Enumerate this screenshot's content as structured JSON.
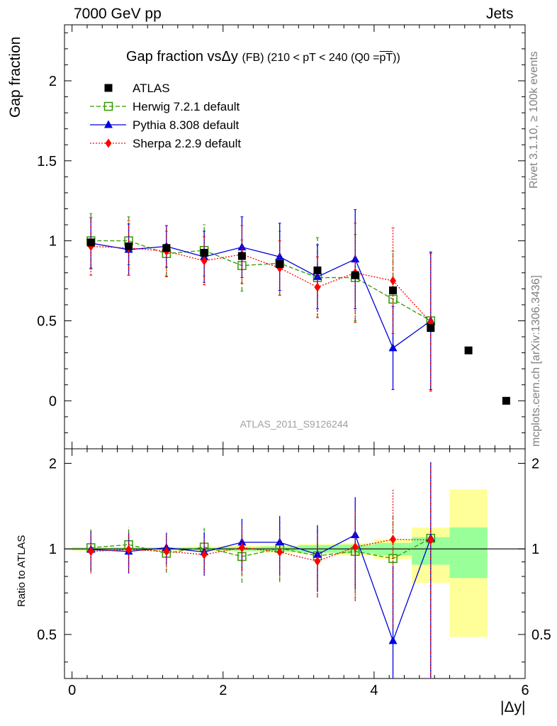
{
  "header": {
    "left": "7000 GeV pp",
    "right": "Jets"
  },
  "title": {
    "main": "Gap fraction vsΔy",
    "suffix": "(FB) (210 < pT < 240 (Q0 =",
    "pt": "pT",
    "close": "))"
  },
  "ylabel_top": "Gap fraction",
  "ylabel_bottom": "Ratio to ATLAS",
  "xlabel": "|Δy|",
  "watermark": "ATLAS_2011_S9126244",
  "side_top": "Rivet 3.1.10, ≥ 100k events",
  "side_bottom": "mcplots.cern.ch [arXiv:1306.3436]",
  "legend": [
    {
      "label": "ATLAS",
      "color": "#000000",
      "marker": "square-filled"
    },
    {
      "label": "Herwig 7.2.1 default",
      "color": "#339900",
      "marker": "square-open"
    },
    {
      "label": "Pythia 8.308 default",
      "color": "#0000dd",
      "marker": "triangle"
    },
    {
      "label": "Sherpa 2.2.9 default",
      "color": "#ff0000",
      "marker": "diamond"
    }
  ],
  "chart_data": {
    "type": "scatter",
    "xlim": [
      -0.1,
      6.0
    ],
    "ylim_main": [
      -0.3,
      2.35
    ],
    "ylim_ratio": [
      0.35,
      2.25
    ],
    "x_ticks": [
      "0",
      "2",
      "4",
      "6"
    ],
    "y_ticks_main": [
      "0",
      "0.5",
      "1",
      "1.5",
      "2"
    ],
    "y_ticks_ratio": [
      "0.5",
      "1",
      "2"
    ],
    "x": [
      0.25,
      0.75,
      1.25,
      1.75,
      2.25,
      2.75,
      3.25,
      3.75,
      4.25,
      4.75,
      5.25,
      5.75
    ],
    "atlas": [
      0.99,
      0.965,
      0.955,
      0.925,
      0.905,
      0.855,
      0.815,
      0.785,
      0.69,
      0.455,
      0.315,
      0.0
    ],
    "series": [
      {
        "name": "Herwig 7.2.1 default",
        "color": "#339900",
        "x": [
          0.25,
          0.75,
          1.25,
          1.75,
          2.25,
          2.75,
          3.25,
          3.75,
          4.25,
          4.75
        ],
        "y": [
          1.0,
          1.0,
          0.92,
          0.94,
          0.845,
          0.86,
          0.77,
          0.77,
          0.635,
          0.5
        ],
        "err": [
          0.17,
          0.15,
          0.14,
          0.16,
          0.16,
          0.2,
          0.25,
          0.27,
          0.3,
          0.43
        ],
        "ratio": [
          1.01,
          1.035,
          0.965,
          1.015,
          0.94,
          1.005,
          0.945,
          0.98,
          0.925,
          1.09
        ],
        "rerr": [
          0.18,
          0.16,
          0.14,
          0.17,
          0.18,
          0.24,
          0.27,
          0.32,
          0.4,
          0.93
        ]
      },
      {
        "name": "Pythia 8.308 default",
        "color": "#0000dd",
        "x": [
          0.25,
          0.75,
          1.25,
          1.75,
          2.25,
          2.75,
          3.25,
          3.75,
          4.25,
          4.75
        ],
        "y": [
          0.985,
          0.945,
          0.965,
          0.9,
          0.96,
          0.9,
          0.775,
          0.885,
          0.33,
          0.5
        ],
        "err": [
          0.16,
          0.16,
          0.13,
          0.16,
          0.19,
          0.21,
          0.2,
          0.31,
          0.26,
          0.43
        ],
        "ratio": [
          0.995,
          0.98,
          1.01,
          0.975,
          1.055,
          1.055,
          0.955,
          1.12,
          0.475,
          1.09
        ],
        "rerr": [
          0.16,
          0.16,
          0.13,
          0.17,
          0.22,
          0.25,
          0.25,
          0.4,
          0.4,
          0.93
        ]
      },
      {
        "name": "Sherpa 2.2.9 default",
        "color": "#ff0000",
        "x": [
          0.25,
          0.75,
          1.25,
          1.75,
          2.25,
          2.75,
          3.25,
          3.75,
          4.25,
          4.75
        ],
        "y": [
          0.965,
          0.955,
          0.935,
          0.875,
          0.915,
          0.83,
          0.71,
          0.8,
          0.75,
          0.49
        ],
        "err": [
          0.18,
          0.17,
          0.16,
          0.15,
          0.18,
          0.17,
          0.19,
          0.31,
          0.33,
          0.43
        ],
        "ratio": [
          0.98,
          0.995,
          0.98,
          0.955,
          1.01,
          0.975,
          0.905,
          1.015,
          1.08,
          1.075
        ],
        "rerr": [
          0.16,
          0.16,
          0.14,
          0.14,
          0.2,
          0.2,
          0.23,
          0.36,
          0.55,
          0.93
        ]
      }
    ],
    "ratio_bands": [
      {
        "x0": 0.0,
        "x1": 0.5,
        "yellow": [
          0.985,
          1.015
        ],
        "green": [
          0.99,
          1.01
        ]
      },
      {
        "x0": 0.5,
        "x1": 1.0,
        "yellow": [
          0.985,
          1.015
        ],
        "green": [
          0.99,
          1.01
        ]
      },
      {
        "x0": 1.0,
        "x1": 1.5,
        "yellow": [
          0.985,
          1.015
        ],
        "green": [
          0.99,
          1.01
        ]
      },
      {
        "x0": 1.5,
        "x1": 2.0,
        "yellow": [
          0.98,
          1.02
        ],
        "green": [
          0.99,
          1.01
        ]
      },
      {
        "x0": 2.0,
        "x1": 2.5,
        "yellow": [
          0.975,
          1.025
        ],
        "green": [
          0.985,
          1.015
        ]
      },
      {
        "x0": 2.5,
        "x1": 3.0,
        "yellow": [
          0.97,
          1.03
        ],
        "green": [
          0.98,
          1.02
        ]
      },
      {
        "x0": 3.0,
        "x1": 3.5,
        "yellow": [
          0.96,
          1.04
        ],
        "green": [
          0.97,
          1.03
        ]
      },
      {
        "x0": 3.5,
        "x1": 4.0,
        "yellow": [
          0.95,
          1.05
        ],
        "green": [
          0.965,
          1.035
        ]
      },
      {
        "x0": 4.0,
        "x1": 4.5,
        "yellow": [
          0.92,
          1.08
        ],
        "green": [
          0.95,
          1.05
        ]
      },
      {
        "x0": 4.5,
        "x1": 5.0,
        "yellow": [
          0.76,
          1.19
        ],
        "green": [
          0.88,
          1.1
        ]
      },
      {
        "x0": 5.0,
        "x1": 5.5,
        "yellow": [
          0.49,
          1.62
        ],
        "green": [
          0.79,
          1.19
        ]
      }
    ]
  }
}
